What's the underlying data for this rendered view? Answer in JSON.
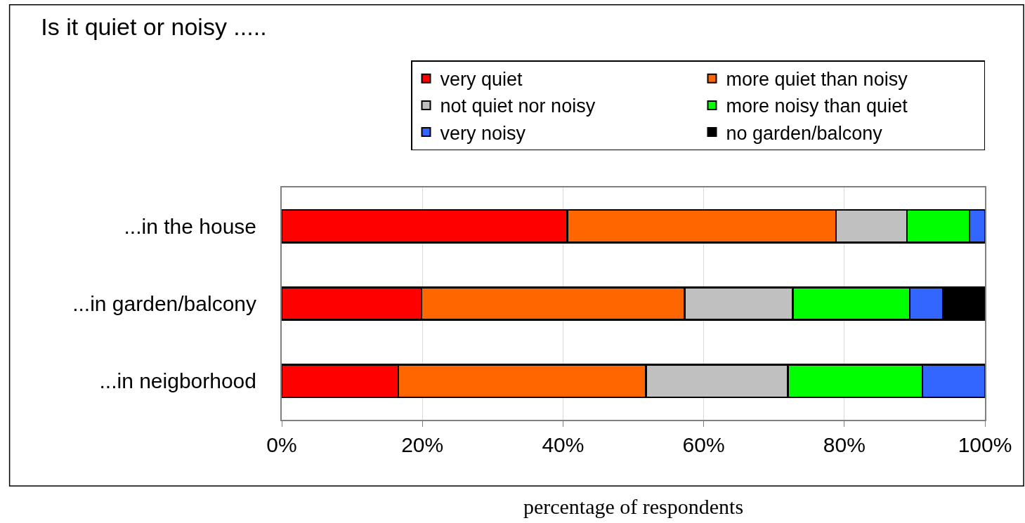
{
  "chart_data": {
    "type": "bar",
    "orientation": "horizontal",
    "stacked": true,
    "title": "Is it quiet or noisy .....",
    "xlabel": "percentage of respondents",
    "categories": [
      "...in the house",
      "...in garden/balcony",
      "...in neigborhood"
    ],
    "series": [
      {
        "name": "very quiet",
        "color": "#ff0000",
        "values": [
          40.6,
          19.9,
          16.6
        ]
      },
      {
        "name": "more quiet than noisy",
        "color": "#ff6600",
        "values": [
          38.2,
          37.4,
          35.2
        ]
      },
      {
        "name": "not quiet nor noisy",
        "color": "#c0c0c0",
        "values": [
          10.1,
          15.4,
          20.2
        ]
      },
      {
        "name": "more noisy than quiet",
        "color": "#00ff00",
        "values": [
          8.9,
          16.6,
          19.1
        ]
      },
      {
        "name": "very noisy",
        "color": "#3366ff",
        "values": [
          2.2,
          4.7,
          8.9
        ]
      },
      {
        "name": "no garden/balcony",
        "color": "#000000",
        "values": [
          0,
          6.0,
          0
        ]
      }
    ],
    "xlim": [
      0,
      100
    ],
    "xticks": [
      {
        "value": 0,
        "label": "0%"
      },
      {
        "value": 20,
        "label": "20%"
      },
      {
        "value": 40,
        "label": "40%"
      },
      {
        "value": 60,
        "label": "60%"
      },
      {
        "value": 80,
        "label": "80%"
      },
      {
        "value": 100,
        "label": "100%"
      }
    ],
    "grid": "x",
    "legend": "top right"
  }
}
